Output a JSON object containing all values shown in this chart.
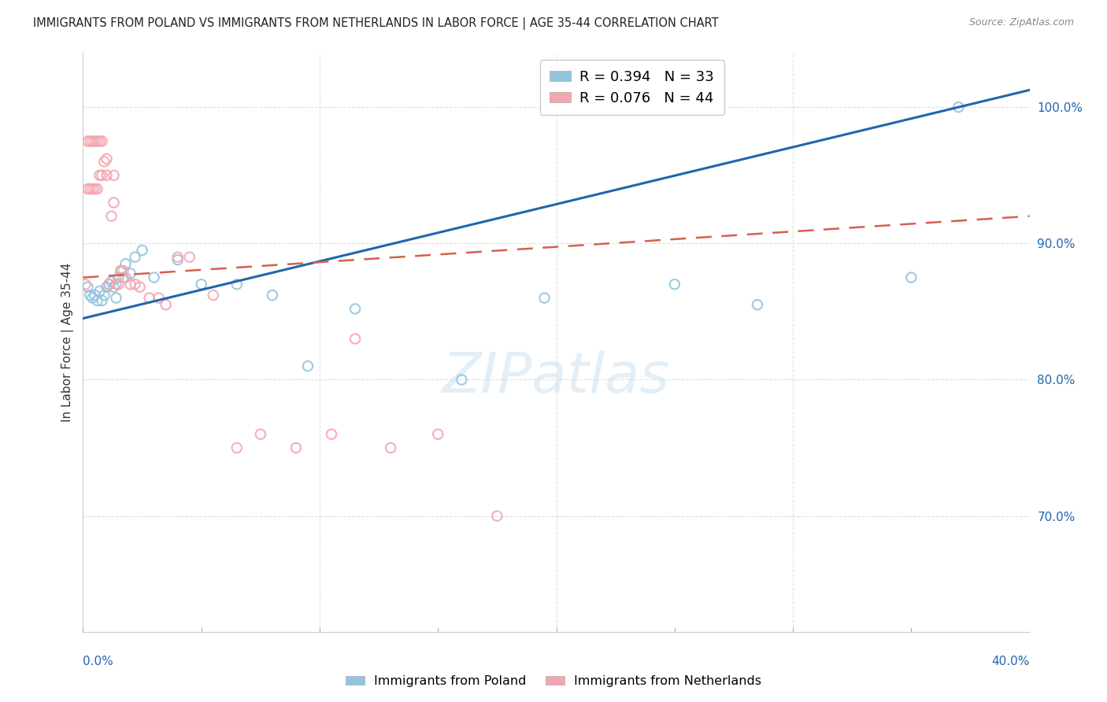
{
  "title": "IMMIGRANTS FROM POLAND VS IMMIGRANTS FROM NETHERLANDS IN LABOR FORCE | AGE 35-44 CORRELATION CHART",
  "source": "Source: ZipAtlas.com",
  "ylabel": "In Labor Force | Age 35-44",
  "right_ytick_labels": [
    "100.0%",
    "90.0%",
    "80.0%",
    "70.0%"
  ],
  "right_ytick_vals": [
    1.0,
    0.9,
    0.8,
    0.7
  ],
  "xlim": [
    0.0,
    0.4
  ],
  "ylim": [
    0.615,
    1.04
  ],
  "poland_R": "0.394",
  "poland_N": "33",
  "netherlands_R": "0.076",
  "netherlands_N": "44",
  "poland_color": "#92c5de",
  "netherlands_color": "#f4a6b0",
  "poland_line_color": "#2166ac",
  "netherlands_line_color": "#d6604d",
  "scatter_size": 80,
  "poland_x": [
    0.002,
    0.003,
    0.004,
    0.005,
    0.006,
    0.007,
    0.008,
    0.009,
    0.01,
    0.011,
    0.012,
    0.013,
    0.014,
    0.015,
    0.016,
    0.017,
    0.018,
    0.02,
    0.022,
    0.025,
    0.03,
    0.04,
    0.05,
    0.065,
    0.08,
    0.095,
    0.115,
    0.16,
    0.195,
    0.25,
    0.285,
    0.35,
    0.37
  ],
  "poland_y": [
    0.868,
    0.862,
    0.86,
    0.862,
    0.858,
    0.865,
    0.858,
    0.862,
    0.868,
    0.87,
    0.872,
    0.868,
    0.86,
    0.875,
    0.88,
    0.875,
    0.885,
    0.878,
    0.89,
    0.895,
    0.875,
    0.888,
    0.87,
    0.87,
    0.862,
    0.81,
    0.852,
    0.8,
    0.86,
    0.87,
    0.855,
    0.875,
    1.0
  ],
  "netherlands_x": [
    0.001,
    0.002,
    0.002,
    0.003,
    0.003,
    0.004,
    0.004,
    0.005,
    0.005,
    0.006,
    0.006,
    0.007,
    0.007,
    0.008,
    0.008,
    0.009,
    0.01,
    0.01,
    0.011,
    0.012,
    0.013,
    0.013,
    0.014,
    0.015,
    0.016,
    0.017,
    0.018,
    0.02,
    0.022,
    0.024,
    0.028,
    0.032,
    0.035,
    0.04,
    0.045,
    0.055,
    0.065,
    0.075,
    0.09,
    0.105,
    0.115,
    0.13,
    0.15,
    0.175
  ],
  "netherlands_y": [
    0.87,
    0.94,
    0.975,
    0.94,
    0.975,
    0.94,
    0.975,
    0.94,
    0.975,
    0.94,
    0.975,
    0.95,
    0.975,
    0.95,
    0.975,
    0.96,
    0.95,
    0.962,
    0.87,
    0.92,
    0.93,
    0.95,
    0.87,
    0.87,
    0.88,
    0.88,
    0.875,
    0.87,
    0.87,
    0.868,
    0.86,
    0.86,
    0.855,
    0.89,
    0.89,
    0.862,
    0.75,
    0.76,
    0.75,
    0.76,
    0.83,
    0.75,
    0.76,
    0.7
  ],
  "watermark_text": "ZIPatlas",
  "bg_color": "#ffffff",
  "grid_color": "#e0e0e0"
}
